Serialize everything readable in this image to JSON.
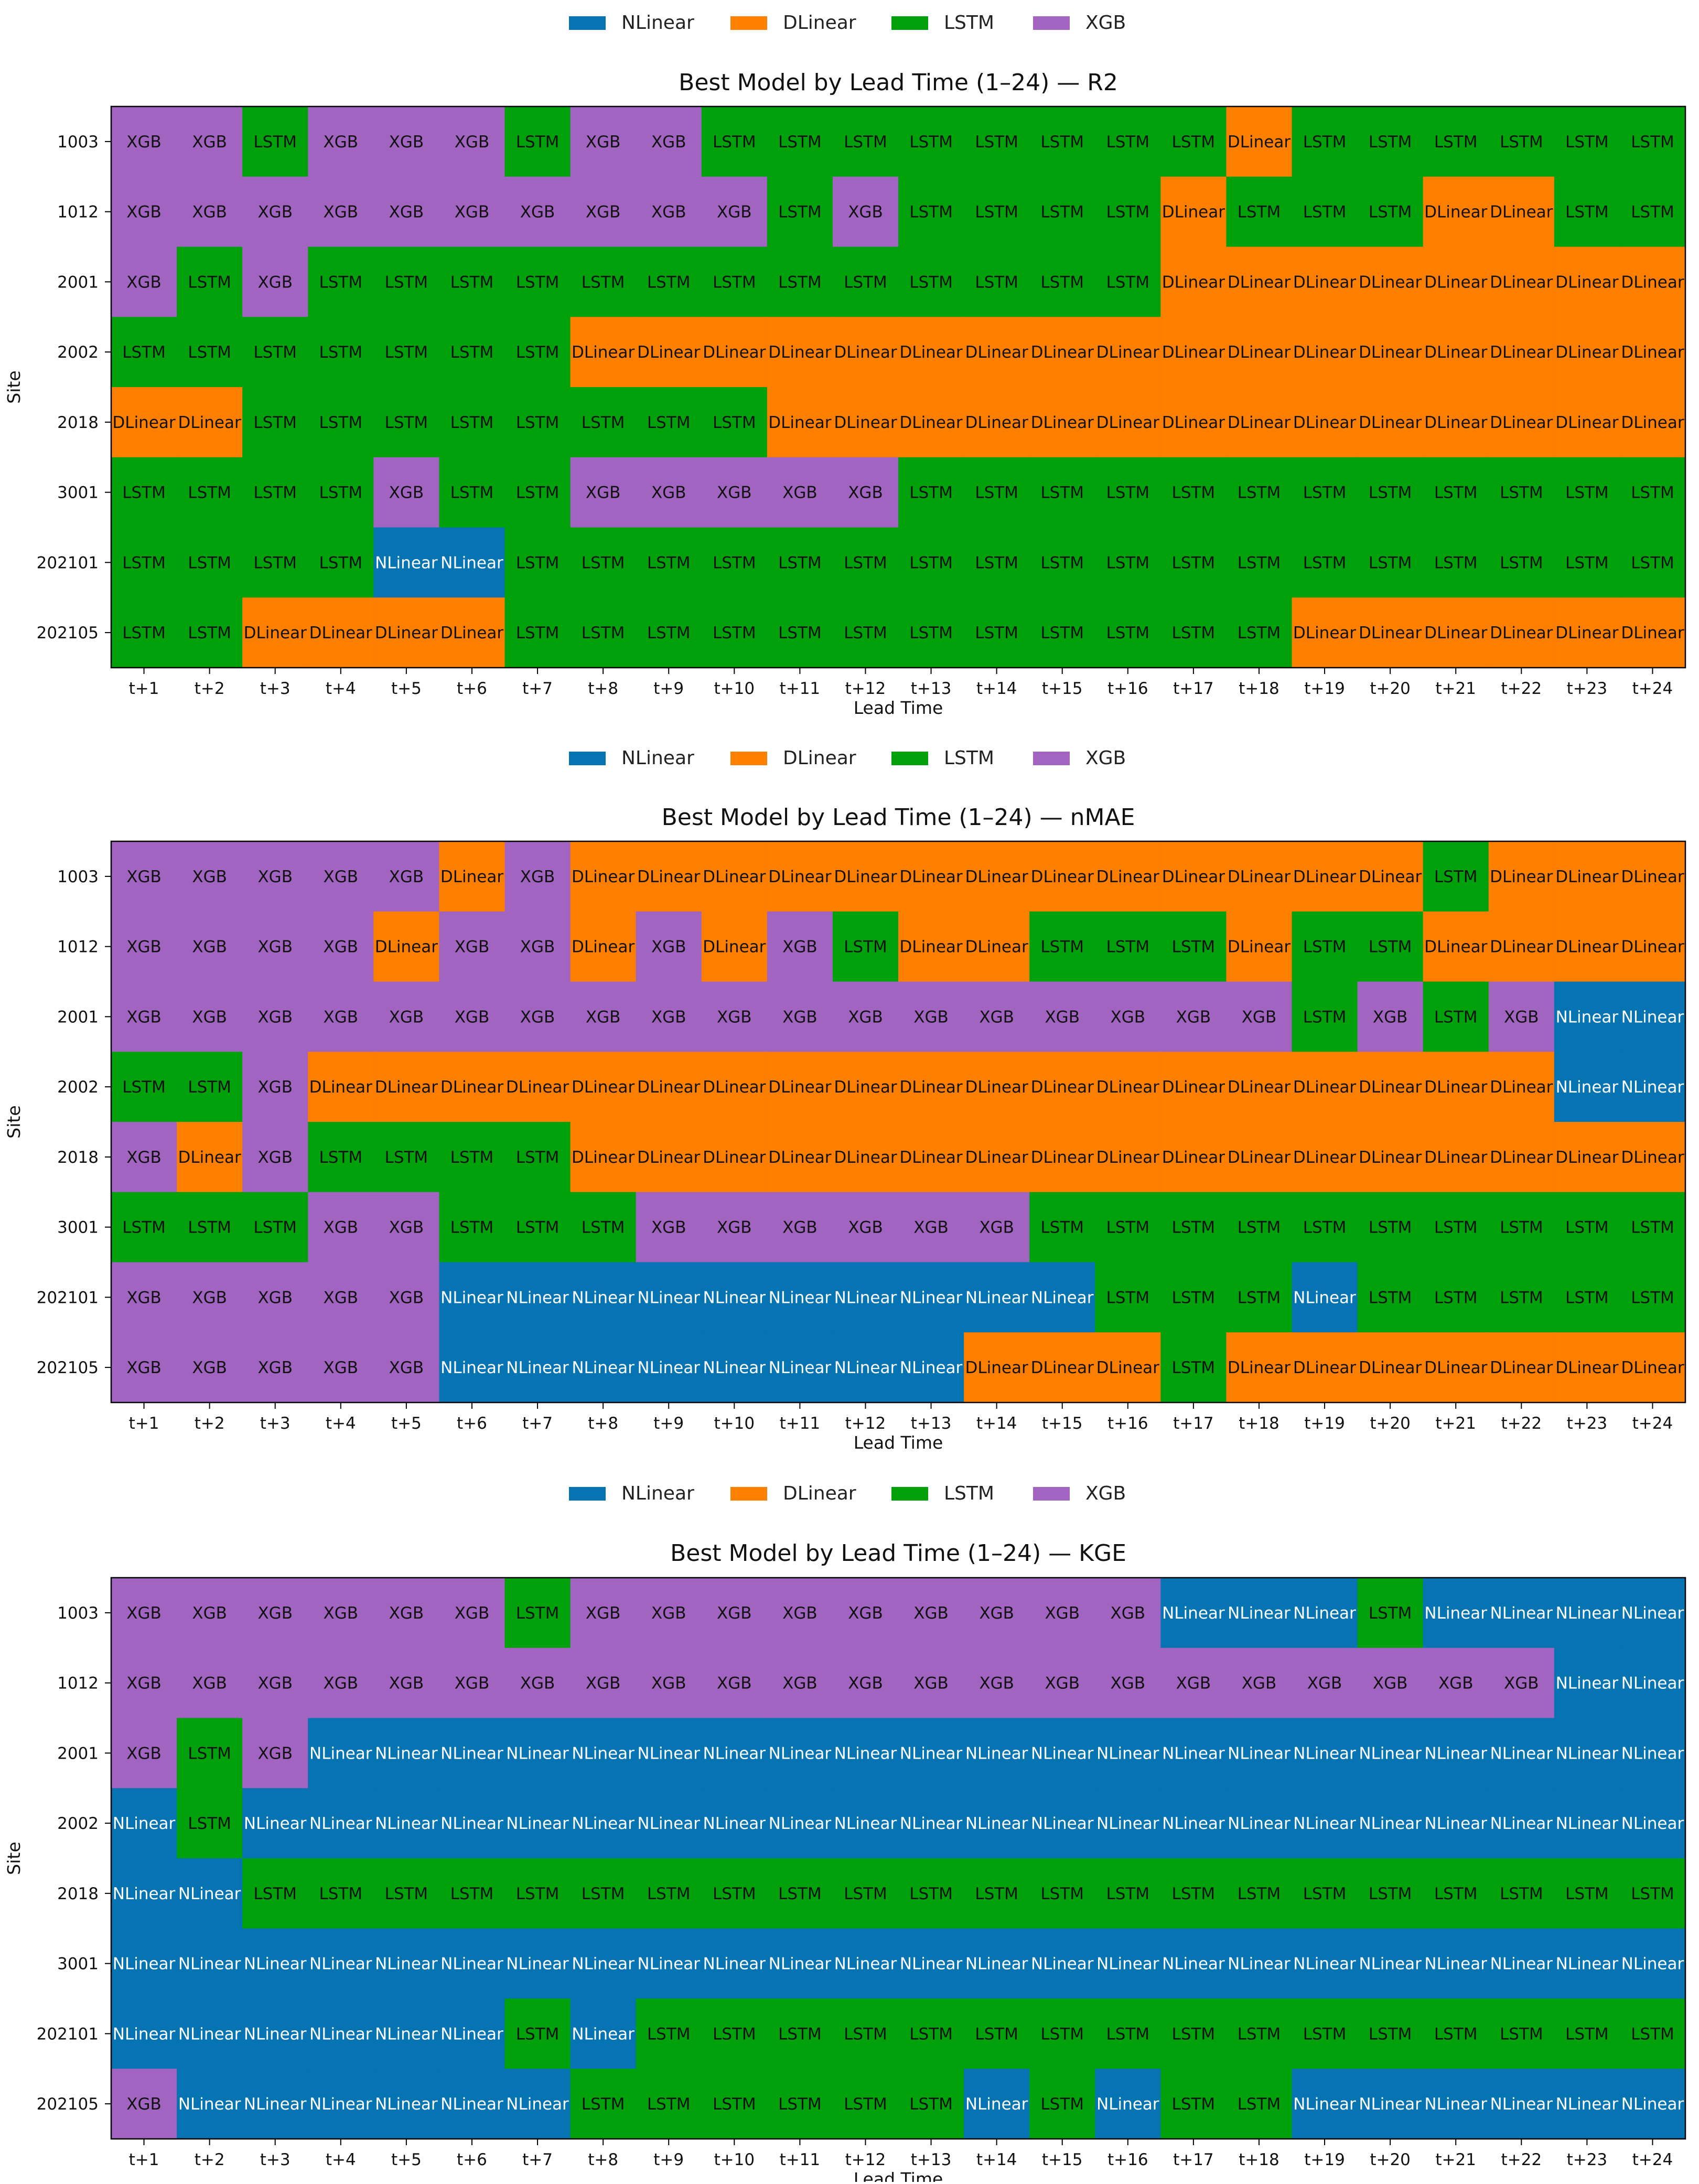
{
  "colors": {
    "NLinear": "#0673b3",
    "DLinear": "#fd7f00",
    "LSTM": "#00a10a",
    "XGB": "#a164c0"
  },
  "models": [
    "NLinear",
    "DLinear",
    "LSTM",
    "XGB"
  ],
  "chart_data": [
    {
      "type": "heatmap",
      "title": "Best Model by Lead Time (1–24) — R2",
      "xlabel": "Lead Time",
      "ylabel": "Site",
      "x": [
        "t+1",
        "t+2",
        "t+3",
        "t+4",
        "t+5",
        "t+6",
        "t+7",
        "t+8",
        "t+9",
        "t+10",
        "t+11",
        "t+12",
        "t+13",
        "t+14",
        "t+15",
        "t+16",
        "t+17",
        "t+18",
        "t+19",
        "t+20",
        "t+21",
        "t+22",
        "t+23",
        "t+24"
      ],
      "y": [
        "1003",
        "1012",
        "2001",
        "2002",
        "2018",
        "3001",
        "202101",
        "202105"
      ],
      "legend": [
        "NLinear",
        "DLinear",
        "LSTM",
        "XGB"
      ],
      "legend_position": "top-center",
      "cells": [
        [
          "XGB",
          "XGB",
          "LSTM",
          "XGB",
          "XGB",
          "XGB",
          "LSTM",
          "XGB",
          "XGB",
          "LSTM",
          "LSTM",
          "LSTM",
          "LSTM",
          "LSTM",
          "LSTM",
          "LSTM",
          "LSTM",
          "DLinear",
          "LSTM",
          "LSTM",
          "LSTM",
          "LSTM",
          "LSTM",
          "LSTM"
        ],
        [
          "XGB",
          "XGB",
          "XGB",
          "XGB",
          "XGB",
          "XGB",
          "XGB",
          "XGB",
          "XGB",
          "XGB",
          "LSTM",
          "XGB",
          "LSTM",
          "LSTM",
          "LSTM",
          "LSTM",
          "DLinear",
          "LSTM",
          "LSTM",
          "LSTM",
          "DLinear",
          "DLinear",
          "LSTM",
          "LSTM"
        ],
        [
          "XGB",
          "LSTM",
          "XGB",
          "LSTM",
          "LSTM",
          "LSTM",
          "LSTM",
          "LSTM",
          "LSTM",
          "LSTM",
          "LSTM",
          "LSTM",
          "LSTM",
          "LSTM",
          "LSTM",
          "LSTM",
          "DLinear",
          "DLinear",
          "DLinear",
          "DLinear",
          "DLinear",
          "DLinear",
          "DLinear",
          "DLinear"
        ],
        [
          "LSTM",
          "LSTM",
          "LSTM",
          "LSTM",
          "LSTM",
          "LSTM",
          "LSTM",
          "DLinear",
          "DLinear",
          "DLinear",
          "DLinear",
          "DLinear",
          "DLinear",
          "DLinear",
          "DLinear",
          "DLinear",
          "DLinear",
          "DLinear",
          "DLinear",
          "DLinear",
          "DLinear",
          "DLinear",
          "DLinear",
          "DLinear"
        ],
        [
          "DLinear",
          "DLinear",
          "LSTM",
          "LSTM",
          "LSTM",
          "LSTM",
          "LSTM",
          "LSTM",
          "LSTM",
          "LSTM",
          "DLinear",
          "DLinear",
          "DLinear",
          "DLinear",
          "DLinear",
          "DLinear",
          "DLinear",
          "DLinear",
          "DLinear",
          "DLinear",
          "DLinear",
          "DLinear",
          "DLinear",
          "DLinear"
        ],
        [
          "LSTM",
          "LSTM",
          "LSTM",
          "LSTM",
          "XGB",
          "LSTM",
          "LSTM",
          "XGB",
          "XGB",
          "XGB",
          "XGB",
          "XGB",
          "LSTM",
          "LSTM",
          "LSTM",
          "LSTM",
          "LSTM",
          "LSTM",
          "LSTM",
          "LSTM",
          "LSTM",
          "LSTM",
          "LSTM",
          "LSTM"
        ],
        [
          "LSTM",
          "LSTM",
          "LSTM",
          "LSTM",
          "NLinear",
          "NLinear",
          "LSTM",
          "LSTM",
          "LSTM",
          "LSTM",
          "LSTM",
          "LSTM",
          "LSTM",
          "LSTM",
          "LSTM",
          "LSTM",
          "LSTM",
          "LSTM",
          "LSTM",
          "LSTM",
          "LSTM",
          "LSTM",
          "LSTM",
          "LSTM"
        ],
        [
          "LSTM",
          "LSTM",
          "DLinear",
          "DLinear",
          "DLinear",
          "DLinear",
          "LSTM",
          "LSTM",
          "LSTM",
          "LSTM",
          "LSTM",
          "LSTM",
          "LSTM",
          "LSTM",
          "LSTM",
          "LSTM",
          "LSTM",
          "LSTM",
          "DLinear",
          "DLinear",
          "DLinear",
          "DLinear",
          "DLinear",
          "DLinear"
        ]
      ]
    },
    {
      "type": "heatmap",
      "title": "Best Model by Lead Time (1–24) — nMAE",
      "xlabel": "Lead Time",
      "ylabel": "Site",
      "x": [
        "t+1",
        "t+2",
        "t+3",
        "t+4",
        "t+5",
        "t+6",
        "t+7",
        "t+8",
        "t+9",
        "t+10",
        "t+11",
        "t+12",
        "t+13",
        "t+14",
        "t+15",
        "t+16",
        "t+17",
        "t+18",
        "t+19",
        "t+20",
        "t+21",
        "t+22",
        "t+23",
        "t+24"
      ],
      "y": [
        "1003",
        "1012",
        "2001",
        "2002",
        "2018",
        "3001",
        "202101",
        "202105"
      ],
      "legend": [
        "NLinear",
        "DLinear",
        "LSTM",
        "XGB"
      ],
      "legend_position": "top-center",
      "cells": [
        [
          "XGB",
          "XGB",
          "XGB",
          "XGB",
          "XGB",
          "DLinear",
          "XGB",
          "DLinear",
          "DLinear",
          "DLinear",
          "DLinear",
          "DLinear",
          "DLinear",
          "DLinear",
          "DLinear",
          "DLinear",
          "DLinear",
          "DLinear",
          "DLinear",
          "DLinear",
          "LSTM",
          "DLinear",
          "DLinear",
          "DLinear"
        ],
        [
          "XGB",
          "XGB",
          "XGB",
          "XGB",
          "DLinear",
          "XGB",
          "XGB",
          "DLinear",
          "XGB",
          "DLinear",
          "XGB",
          "LSTM",
          "DLinear",
          "DLinear",
          "LSTM",
          "LSTM",
          "LSTM",
          "DLinear",
          "LSTM",
          "LSTM",
          "DLinear",
          "DLinear",
          "DLinear",
          "DLinear"
        ],
        [
          "XGB",
          "XGB",
          "XGB",
          "XGB",
          "XGB",
          "XGB",
          "XGB",
          "XGB",
          "XGB",
          "XGB",
          "XGB",
          "XGB",
          "XGB",
          "XGB",
          "XGB",
          "XGB",
          "XGB",
          "XGB",
          "LSTM",
          "XGB",
          "LSTM",
          "XGB",
          "NLinear",
          "NLinear"
        ],
        [
          "LSTM",
          "LSTM",
          "XGB",
          "DLinear",
          "DLinear",
          "DLinear",
          "DLinear",
          "DLinear",
          "DLinear",
          "DLinear",
          "DLinear",
          "DLinear",
          "DLinear",
          "DLinear",
          "DLinear",
          "DLinear",
          "DLinear",
          "DLinear",
          "DLinear",
          "DLinear",
          "DLinear",
          "DLinear",
          "NLinear",
          "NLinear"
        ],
        [
          "XGB",
          "DLinear",
          "XGB",
          "LSTM",
          "LSTM",
          "LSTM",
          "LSTM",
          "DLinear",
          "DLinear",
          "DLinear",
          "DLinear",
          "DLinear",
          "DLinear",
          "DLinear",
          "DLinear",
          "DLinear",
          "DLinear",
          "DLinear",
          "DLinear",
          "DLinear",
          "DLinear",
          "DLinear",
          "DLinear",
          "DLinear"
        ],
        [
          "LSTM",
          "LSTM",
          "LSTM",
          "XGB",
          "XGB",
          "LSTM",
          "LSTM",
          "LSTM",
          "XGB",
          "XGB",
          "XGB",
          "XGB",
          "XGB",
          "XGB",
          "LSTM",
          "LSTM",
          "LSTM",
          "LSTM",
          "LSTM",
          "LSTM",
          "LSTM",
          "LSTM",
          "LSTM",
          "LSTM"
        ],
        [
          "XGB",
          "XGB",
          "XGB",
          "XGB",
          "XGB",
          "NLinear",
          "NLinear",
          "NLinear",
          "NLinear",
          "NLinear",
          "NLinear",
          "NLinear",
          "NLinear",
          "NLinear",
          "NLinear",
          "LSTM",
          "LSTM",
          "LSTM",
          "NLinear",
          "LSTM",
          "LSTM",
          "LSTM",
          "LSTM",
          "LSTM"
        ],
        [
          "XGB",
          "XGB",
          "XGB",
          "XGB",
          "XGB",
          "NLinear",
          "NLinear",
          "NLinear",
          "NLinear",
          "NLinear",
          "NLinear",
          "NLinear",
          "NLinear",
          "DLinear",
          "DLinear",
          "DLinear",
          "LSTM",
          "DLinear",
          "DLinear",
          "DLinear",
          "DLinear",
          "DLinear",
          "DLinear",
          "DLinear"
        ]
      ]
    },
    {
      "type": "heatmap",
      "title": "Best Model by Lead Time (1–24) — KGE",
      "xlabel": "Lead Time",
      "ylabel": "Site",
      "x": [
        "t+1",
        "t+2",
        "t+3",
        "t+4",
        "t+5",
        "t+6",
        "t+7",
        "t+8",
        "t+9",
        "t+10",
        "t+11",
        "t+12",
        "t+13",
        "t+14",
        "t+15",
        "t+16",
        "t+17",
        "t+18",
        "t+19",
        "t+20",
        "t+21",
        "t+22",
        "t+23",
        "t+24"
      ],
      "y": [
        "1003",
        "1012",
        "2001",
        "2002",
        "2018",
        "3001",
        "202101",
        "202105"
      ],
      "legend": [
        "NLinear",
        "DLinear",
        "LSTM",
        "XGB"
      ],
      "legend_position": "top-center",
      "cells": [
        [
          "XGB",
          "XGB",
          "XGB",
          "XGB",
          "XGB",
          "XGB",
          "LSTM",
          "XGB",
          "XGB",
          "XGB",
          "XGB",
          "XGB",
          "XGB",
          "XGB",
          "XGB",
          "XGB",
          "NLinear",
          "NLinear",
          "NLinear",
          "LSTM",
          "NLinear",
          "NLinear",
          "NLinear",
          "NLinear"
        ],
        [
          "XGB",
          "XGB",
          "XGB",
          "XGB",
          "XGB",
          "XGB",
          "XGB",
          "XGB",
          "XGB",
          "XGB",
          "XGB",
          "XGB",
          "XGB",
          "XGB",
          "XGB",
          "XGB",
          "XGB",
          "XGB",
          "XGB",
          "XGB",
          "XGB",
          "XGB",
          "NLinear",
          "NLinear"
        ],
        [
          "XGB",
          "LSTM",
          "XGB",
          "NLinear",
          "NLinear",
          "NLinear",
          "NLinear",
          "NLinear",
          "NLinear",
          "NLinear",
          "NLinear",
          "NLinear",
          "NLinear",
          "NLinear",
          "NLinear",
          "NLinear",
          "NLinear",
          "NLinear",
          "NLinear",
          "NLinear",
          "NLinear",
          "NLinear",
          "NLinear",
          "NLinear"
        ],
        [
          "NLinear",
          "LSTM",
          "NLinear",
          "NLinear",
          "NLinear",
          "NLinear",
          "NLinear",
          "NLinear",
          "NLinear",
          "NLinear",
          "NLinear",
          "NLinear",
          "NLinear",
          "NLinear",
          "NLinear",
          "NLinear",
          "NLinear",
          "NLinear",
          "NLinear",
          "NLinear",
          "NLinear",
          "NLinear",
          "NLinear",
          "NLinear"
        ],
        [
          "NLinear",
          "NLinear",
          "LSTM",
          "LSTM",
          "LSTM",
          "LSTM",
          "LSTM",
          "LSTM",
          "LSTM",
          "LSTM",
          "LSTM",
          "LSTM",
          "LSTM",
          "LSTM",
          "LSTM",
          "LSTM",
          "LSTM",
          "LSTM",
          "LSTM",
          "LSTM",
          "LSTM",
          "LSTM",
          "LSTM",
          "LSTM"
        ],
        [
          "NLinear",
          "NLinear",
          "NLinear",
          "NLinear",
          "NLinear",
          "NLinear",
          "NLinear",
          "NLinear",
          "NLinear",
          "NLinear",
          "NLinear",
          "NLinear",
          "NLinear",
          "NLinear",
          "NLinear",
          "NLinear",
          "NLinear",
          "NLinear",
          "NLinear",
          "NLinear",
          "NLinear",
          "NLinear",
          "NLinear",
          "NLinear"
        ],
        [
          "NLinear",
          "NLinear",
          "NLinear",
          "NLinear",
          "NLinear",
          "NLinear",
          "LSTM",
          "NLinear",
          "LSTM",
          "LSTM",
          "LSTM",
          "LSTM",
          "LSTM",
          "LSTM",
          "LSTM",
          "LSTM",
          "LSTM",
          "LSTM",
          "LSTM",
          "LSTM",
          "LSTM",
          "LSTM",
          "LSTM",
          "LSTM"
        ],
        [
          "XGB",
          "NLinear",
          "NLinear",
          "NLinear",
          "NLinear",
          "NLinear",
          "NLinear",
          "LSTM",
          "LSTM",
          "LSTM",
          "LSTM",
          "LSTM",
          "LSTM",
          "NLinear",
          "LSTM",
          "NLinear",
          "LSTM",
          "LSTM",
          "NLinear",
          "NLinear",
          "NLinear",
          "NLinear",
          "NLinear",
          "NLinear"
        ]
      ]
    }
  ]
}
